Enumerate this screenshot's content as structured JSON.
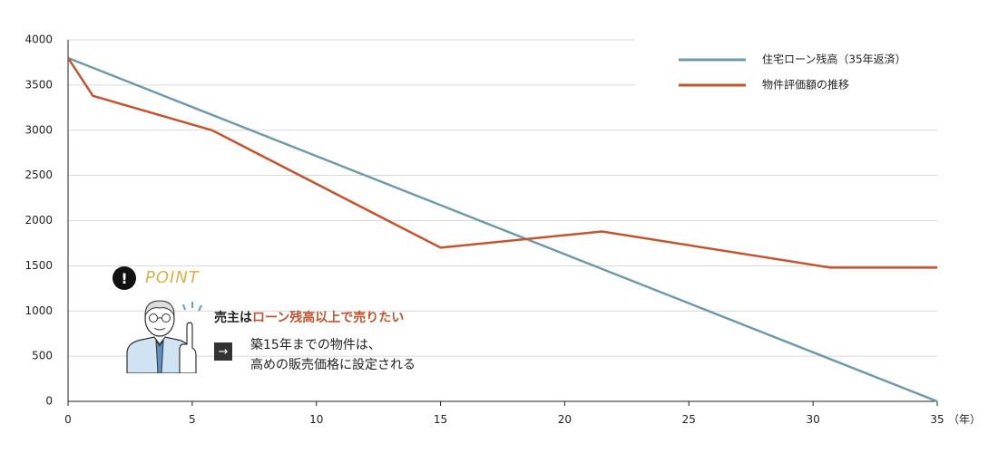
{
  "chart_data": {
    "type": "line",
    "x_unit_label": "（年）",
    "xlim": [
      0,
      35
    ],
    "ylim": [
      0,
      4000
    ],
    "x_ticks": [
      0,
      5,
      10,
      15,
      20,
      25,
      30,
      35
    ],
    "y_ticks": [
      0,
      500,
      1000,
      1500,
      2000,
      2500,
      3000,
      3500,
      4000
    ],
    "grid": true,
    "legend_position": "top-right",
    "series": [
      {
        "name": "住宅ローン残高（35年返済）",
        "color": "#6e9aaa",
        "points": [
          [
            0,
            3800
          ],
          [
            35,
            0
          ]
        ]
      },
      {
        "name": "物件評価額の推移",
        "color": "#c1552f",
        "points": [
          [
            0,
            3800
          ],
          [
            1,
            3380
          ],
          [
            5.8,
            3000
          ],
          [
            15,
            1700
          ],
          [
            21.5,
            1880
          ],
          [
            30.7,
            1480
          ],
          [
            35,
            1480
          ]
        ]
      }
    ]
  },
  "callout": {
    "badge": "!",
    "point_label": "POINT",
    "headline_prefix": "売主は",
    "headline_highlight": "ローン残高以上で売りたい",
    "arrow": "→",
    "note_line1": "築15年までの物件は、",
    "note_line2": "高めの販売価格に設定される"
  }
}
